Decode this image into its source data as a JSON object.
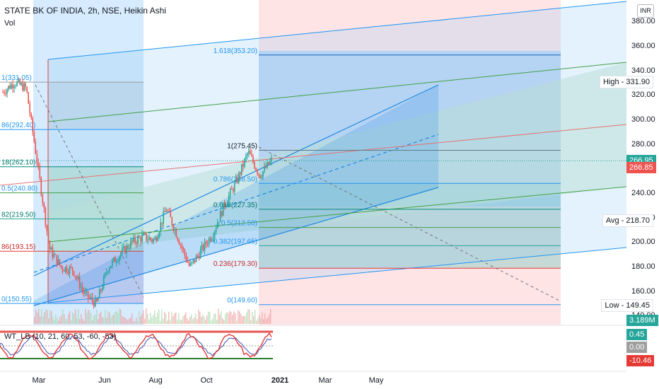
{
  "header": {
    "symbol_title": "STATE BK OF INDIA, 2h, NSE, Heikin Ashi",
    "volume_label": "Vol",
    "currency_button": "INR",
    "indicator_label": "WT_LB (10, 21, 60, 53, -60, -53)"
  },
  "colors": {
    "candle_up": "#26a69a",
    "candle_down": "#ef5350",
    "fib_label": "#2196f3",
    "wt_line": "#e53935",
    "wt_signal": "#3f51b5"
  },
  "chart_data": [
    {
      "type": "candlestick",
      "title": "STATE BK OF INDIA, 2h, NSE, Heikin Ashi",
      "y_axis": {
        "position": "right",
        "range": [
          143,
          372
        ],
        "ticks": [
          "140.00",
          "160.00",
          "180.00",
          "200.00",
          "220.00",
          "240.00",
          "260.00",
          "280.00",
          "300.00",
          "320.00",
          "340.00",
          "360.00",
          "380.00"
        ]
      },
      "x_ticks": [
        "Mar",
        "Jun",
        "Aug",
        "Oct",
        "2021",
        "Mar",
        "May"
      ],
      "price_points": [
        {
          "t": "Jan",
          "price": 323
        },
        {
          "t": "Feb",
          "price": 331
        },
        {
          "t": "late Feb",
          "price": 326
        },
        {
          "t": "early Mar",
          "price": 262
        },
        {
          "t": "mid Mar",
          "price": 195
        },
        {
          "t": "late Mar",
          "price": 180
        },
        {
          "t": "Apr",
          "price": 178
        },
        {
          "t": "early May",
          "price": 158
        },
        {
          "t": "mid May",
          "price": 150
        },
        {
          "t": "late May",
          "price": 180
        },
        {
          "t": "Jun",
          "price": 190
        },
        {
          "t": "early Jul",
          "price": 200
        },
        {
          "t": "Jul",
          "price": 205
        },
        {
          "t": "early Aug",
          "price": 202
        },
        {
          "t": "mid Aug",
          "price": 228
        },
        {
          "t": "Sep",
          "price": 204
        },
        {
          "t": "late Sep",
          "price": 180
        },
        {
          "t": "Oct",
          "price": 194
        },
        {
          "t": "late Oct",
          "price": 208
        },
        {
          "t": "early Nov",
          "price": 232
        },
        {
          "t": "mid Nov",
          "price": 250
        },
        {
          "t": "late Nov",
          "price": 274
        },
        {
          "t": "early Dec",
          "price": 255
        },
        {
          "t": "mid Dec",
          "price": 267
        }
      ],
      "price_labels": [
        {
          "label": "High",
          "value": "331.90"
        },
        {
          "label": "Avg",
          "value": "218.70"
        },
        {
          "label": "Low",
          "value": "149.45"
        }
      ],
      "last_price_tags": [
        "266.95",
        "266.85"
      ],
      "fib_retracement_1": {
        "levels": [
          {
            "ratio": "1",
            "text": "1(331.05)",
            "price": 331.05
          },
          {
            "ratio": "0.786",
            "text": "86(292.40)",
            "price": 292.4
          },
          {
            "ratio": "0.618",
            "text": "18(262.10)",
            "price": 262.1
          },
          {
            "ratio": "0.5",
            "text": "0.5(240.80)",
            "price": 240.8
          },
          {
            "ratio": "0.382",
            "text": "82(219.50)",
            "price": 219.5
          },
          {
            "ratio": "0.236",
            "text": "86(193.15)",
            "price": 193.15
          },
          {
            "ratio": "0",
            "text": "0(150.55)",
            "price": 150.55
          }
        ]
      },
      "fib_retracement_2": {
        "levels": [
          {
            "ratio": "1.618",
            "text": "1.618(353.20)",
            "price": 353.2
          },
          {
            "ratio": "1",
            "text": "1(275.45)",
            "price": 275.45
          },
          {
            "ratio": "0.786",
            "text": "0.786(248.50)",
            "price": 248.5
          },
          {
            "ratio": "0.618",
            "text": "0.618(227.35)",
            "price": 227.35
          },
          {
            "ratio": "0.5",
            "text": "0.5(212.50)",
            "price": 212.5
          },
          {
            "ratio": "0.382",
            "text": "0.382(197.65)",
            "price": 197.65
          },
          {
            "ratio": "0.236",
            "text": "0.236(179.30)",
            "price": 179.3
          },
          {
            "ratio": "0",
            "text": "0(149.60)",
            "price": 149.6
          }
        ]
      }
    },
    {
      "type": "line",
      "name": "WT_LB",
      "params": "(10, 21, 60, 53, -60, -53)",
      "value_tags": [
        "0.45",
        "0.00",
        "-10.46"
      ],
      "volume_tag": "3.189M"
    }
  ]
}
